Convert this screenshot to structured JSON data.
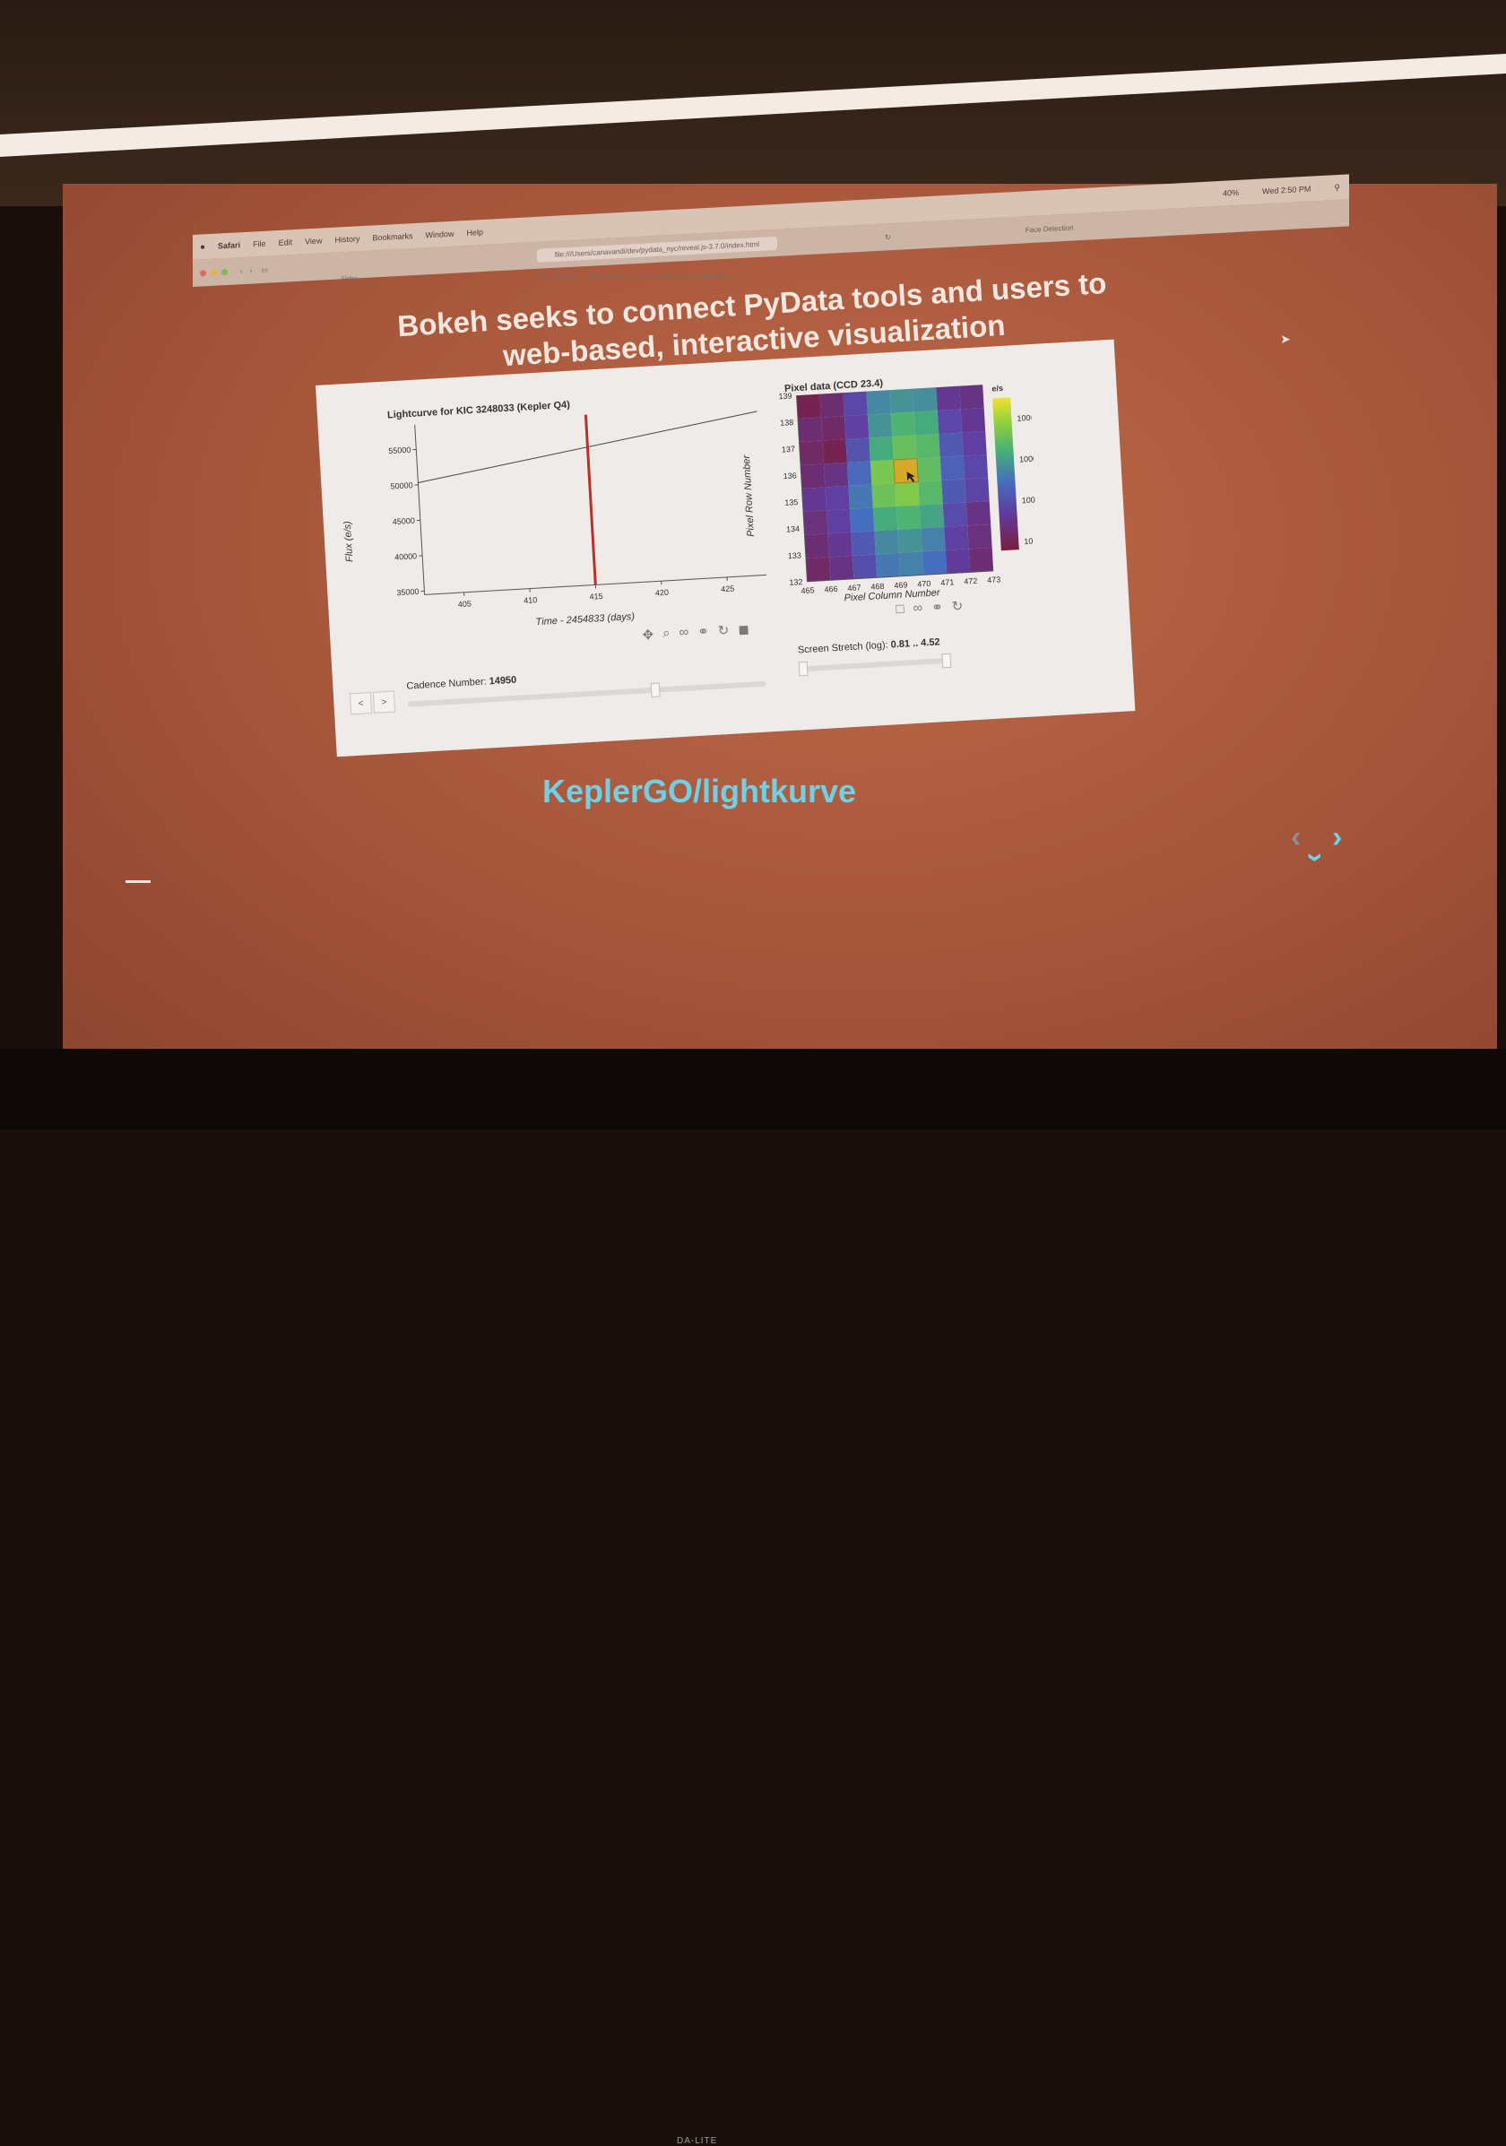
{
  "menubar": {
    "app": "Safari",
    "items": [
      "File",
      "Edit",
      "View",
      "History",
      "Bookmarks",
      "Window",
      "Help"
    ],
    "clock": "Wed 2:50 PM",
    "battery": "40%"
  },
  "toolbar": {
    "url": "file:///Users/canavandi/dev/pydata_nyc/reveal.js-3.7.0/index.html",
    "tab_title": "Web Interface — Dask.distributed 1.23.3+11.ga67ba25 documentation",
    "left_tab": "Slides",
    "right_tab": "Face Detection"
  },
  "slide": {
    "title_line1": "Bokeh seeks to connect PyData tools and users to",
    "title_line2": "web-based, interactive visualization",
    "repo_link": "KeplerGO/lightkurve"
  },
  "lightcurve": {
    "title": "Lightcurve for KIC 3248033 (Kepler Q4)",
    "xlabel": "Time - 2454833 (days)",
    "ylabel": "Flux (e/s)",
    "xticks": [
      "405",
      "410",
      "415",
      "420",
      "425"
    ],
    "yticks": [
      "35000",
      "40000",
      "45000",
      "50000",
      "55000"
    ]
  },
  "pixel": {
    "title": "Pixel data (CCD 23.4)",
    "xlabel": "Pixel Column Number",
    "ylabel": "Pixel Row Number",
    "colorbar_label": "e/s",
    "xticks": [
      "465",
      "466",
      "467",
      "468",
      "469",
      "470",
      "471",
      "472",
      "473"
    ],
    "yticks": [
      "132",
      "133",
      "134",
      "135",
      "136",
      "137",
      "138",
      "139"
    ],
    "cticks": [
      "10000",
      "1000",
      "100",
      "10"
    ]
  },
  "controls": {
    "prev": "<",
    "next": ">",
    "cadence_label": "Cadence Number:",
    "cadence_value": "14950",
    "stretch_label": "Screen Stretch (log):",
    "stretch_value": "0.81 .. 4.52"
  },
  "chart_data": [
    {
      "type": "line",
      "title": "Lightcurve for KIC 3248033 (Kepler Q4)",
      "xlabel": "Time - 2454833 (days)",
      "ylabel": "Flux (e/s)",
      "xlim": [
        402,
        428
      ],
      "ylim": [
        34500,
        58500
      ],
      "x": [
        402,
        428
      ],
      "y": [
        50300,
        57600
      ],
      "marker_x": 415,
      "marker_color": "#b8322a"
    },
    {
      "type": "heatmap",
      "title": "Pixel data (CCD 23.4)",
      "xlabel": "Pixel Column Number",
      "ylabel": "Pixel Row Number",
      "columns": [
        465,
        466,
        467,
        468,
        469,
        470,
        471,
        472
      ],
      "rows": [
        139,
        138,
        137,
        136,
        135,
        134,
        133,
        132
      ],
      "colorbar": {
        "label": "e/s",
        "ticks": [
          "10000",
          "1000",
          "100",
          "10"
        ],
        "scale": "log"
      },
      "values": [
        [
          10,
          20,
          80,
          600,
          800,
          700,
          40,
          30
        ],
        [
          20,
          15,
          60,
          800,
          2000,
          1500,
          80,
          40
        ],
        [
          15,
          10,
          120,
          1500,
          3500,
          2500,
          150,
          60
        ],
        [
          20,
          30,
          250,
          5000,
          9000,
          3000,
          200,
          80
        ],
        [
          40,
          60,
          400,
          4000,
          6000,
          2500,
          150,
          70
        ],
        [
          25,
          60,
          300,
          1500,
          2000,
          1200,
          90,
          30
        ],
        [
          20,
          40,
          150,
          600,
          800,
          500,
          60,
          25
        ],
        [
          15,
          30,
          100,
          400,
          500,
          300,
          50,
          20
        ]
      ],
      "cursor_cell": [
        469,
        136
      ]
    }
  ]
}
